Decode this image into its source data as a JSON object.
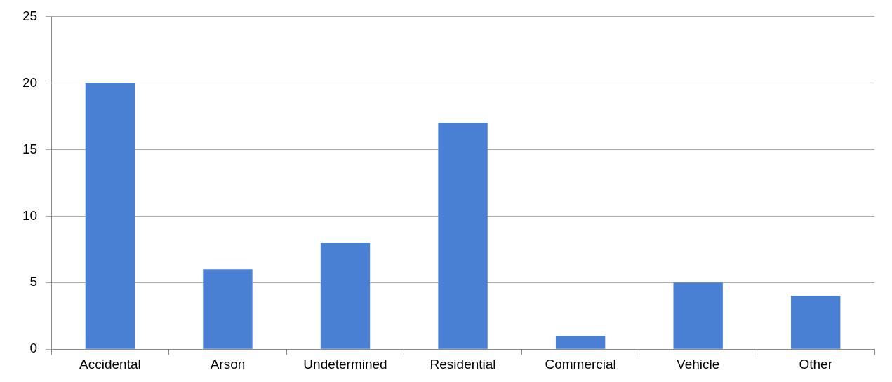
{
  "chart_data": {
    "type": "bar",
    "categories": [
      "Accidental",
      "Arson",
      "Undetermined",
      "Residential",
      "Commercial",
      "Vehicle",
      "Other"
    ],
    "values": [
      20,
      6,
      8,
      17,
      1,
      5,
      4
    ],
    "color": "#4a80d4",
    "ylim": [
      0,
      25
    ],
    "yticks": [
      0,
      5,
      10,
      15,
      20,
      25
    ],
    "grid": "y",
    "legend": false
  }
}
